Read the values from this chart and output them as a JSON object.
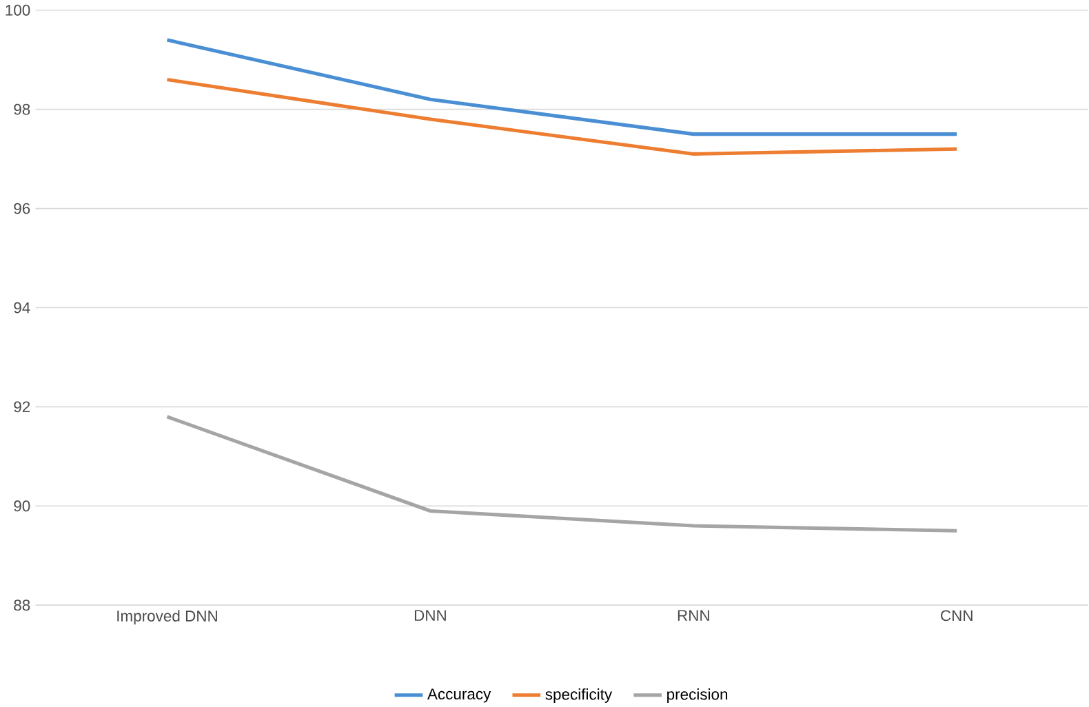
{
  "chart_data": {
    "type": "line",
    "categories": [
      "Improved DNN",
      "DNN",
      "RNN",
      "CNN"
    ],
    "series": [
      {
        "name": "Accuracy",
        "color": "#4a8fd4",
        "values": [
          99.4,
          98.2,
          97.5,
          97.5
        ]
      },
      {
        "name": "specificity",
        "color": "#ed7d31",
        "values": [
          98.6,
          97.8,
          97.1,
          97.2
        ]
      },
      {
        "name": "precision",
        "color": "#a5a5a5",
        "values": [
          91.8,
          89.9,
          89.6,
          89.5
        ]
      }
    ],
    "ylim": [
      88,
      100
    ],
    "yticks": [
      88,
      90,
      92,
      94,
      96,
      98,
      100
    ],
    "grid": "y",
    "legend": "bottom",
    "marker": "none",
    "line_style": "solid"
  }
}
